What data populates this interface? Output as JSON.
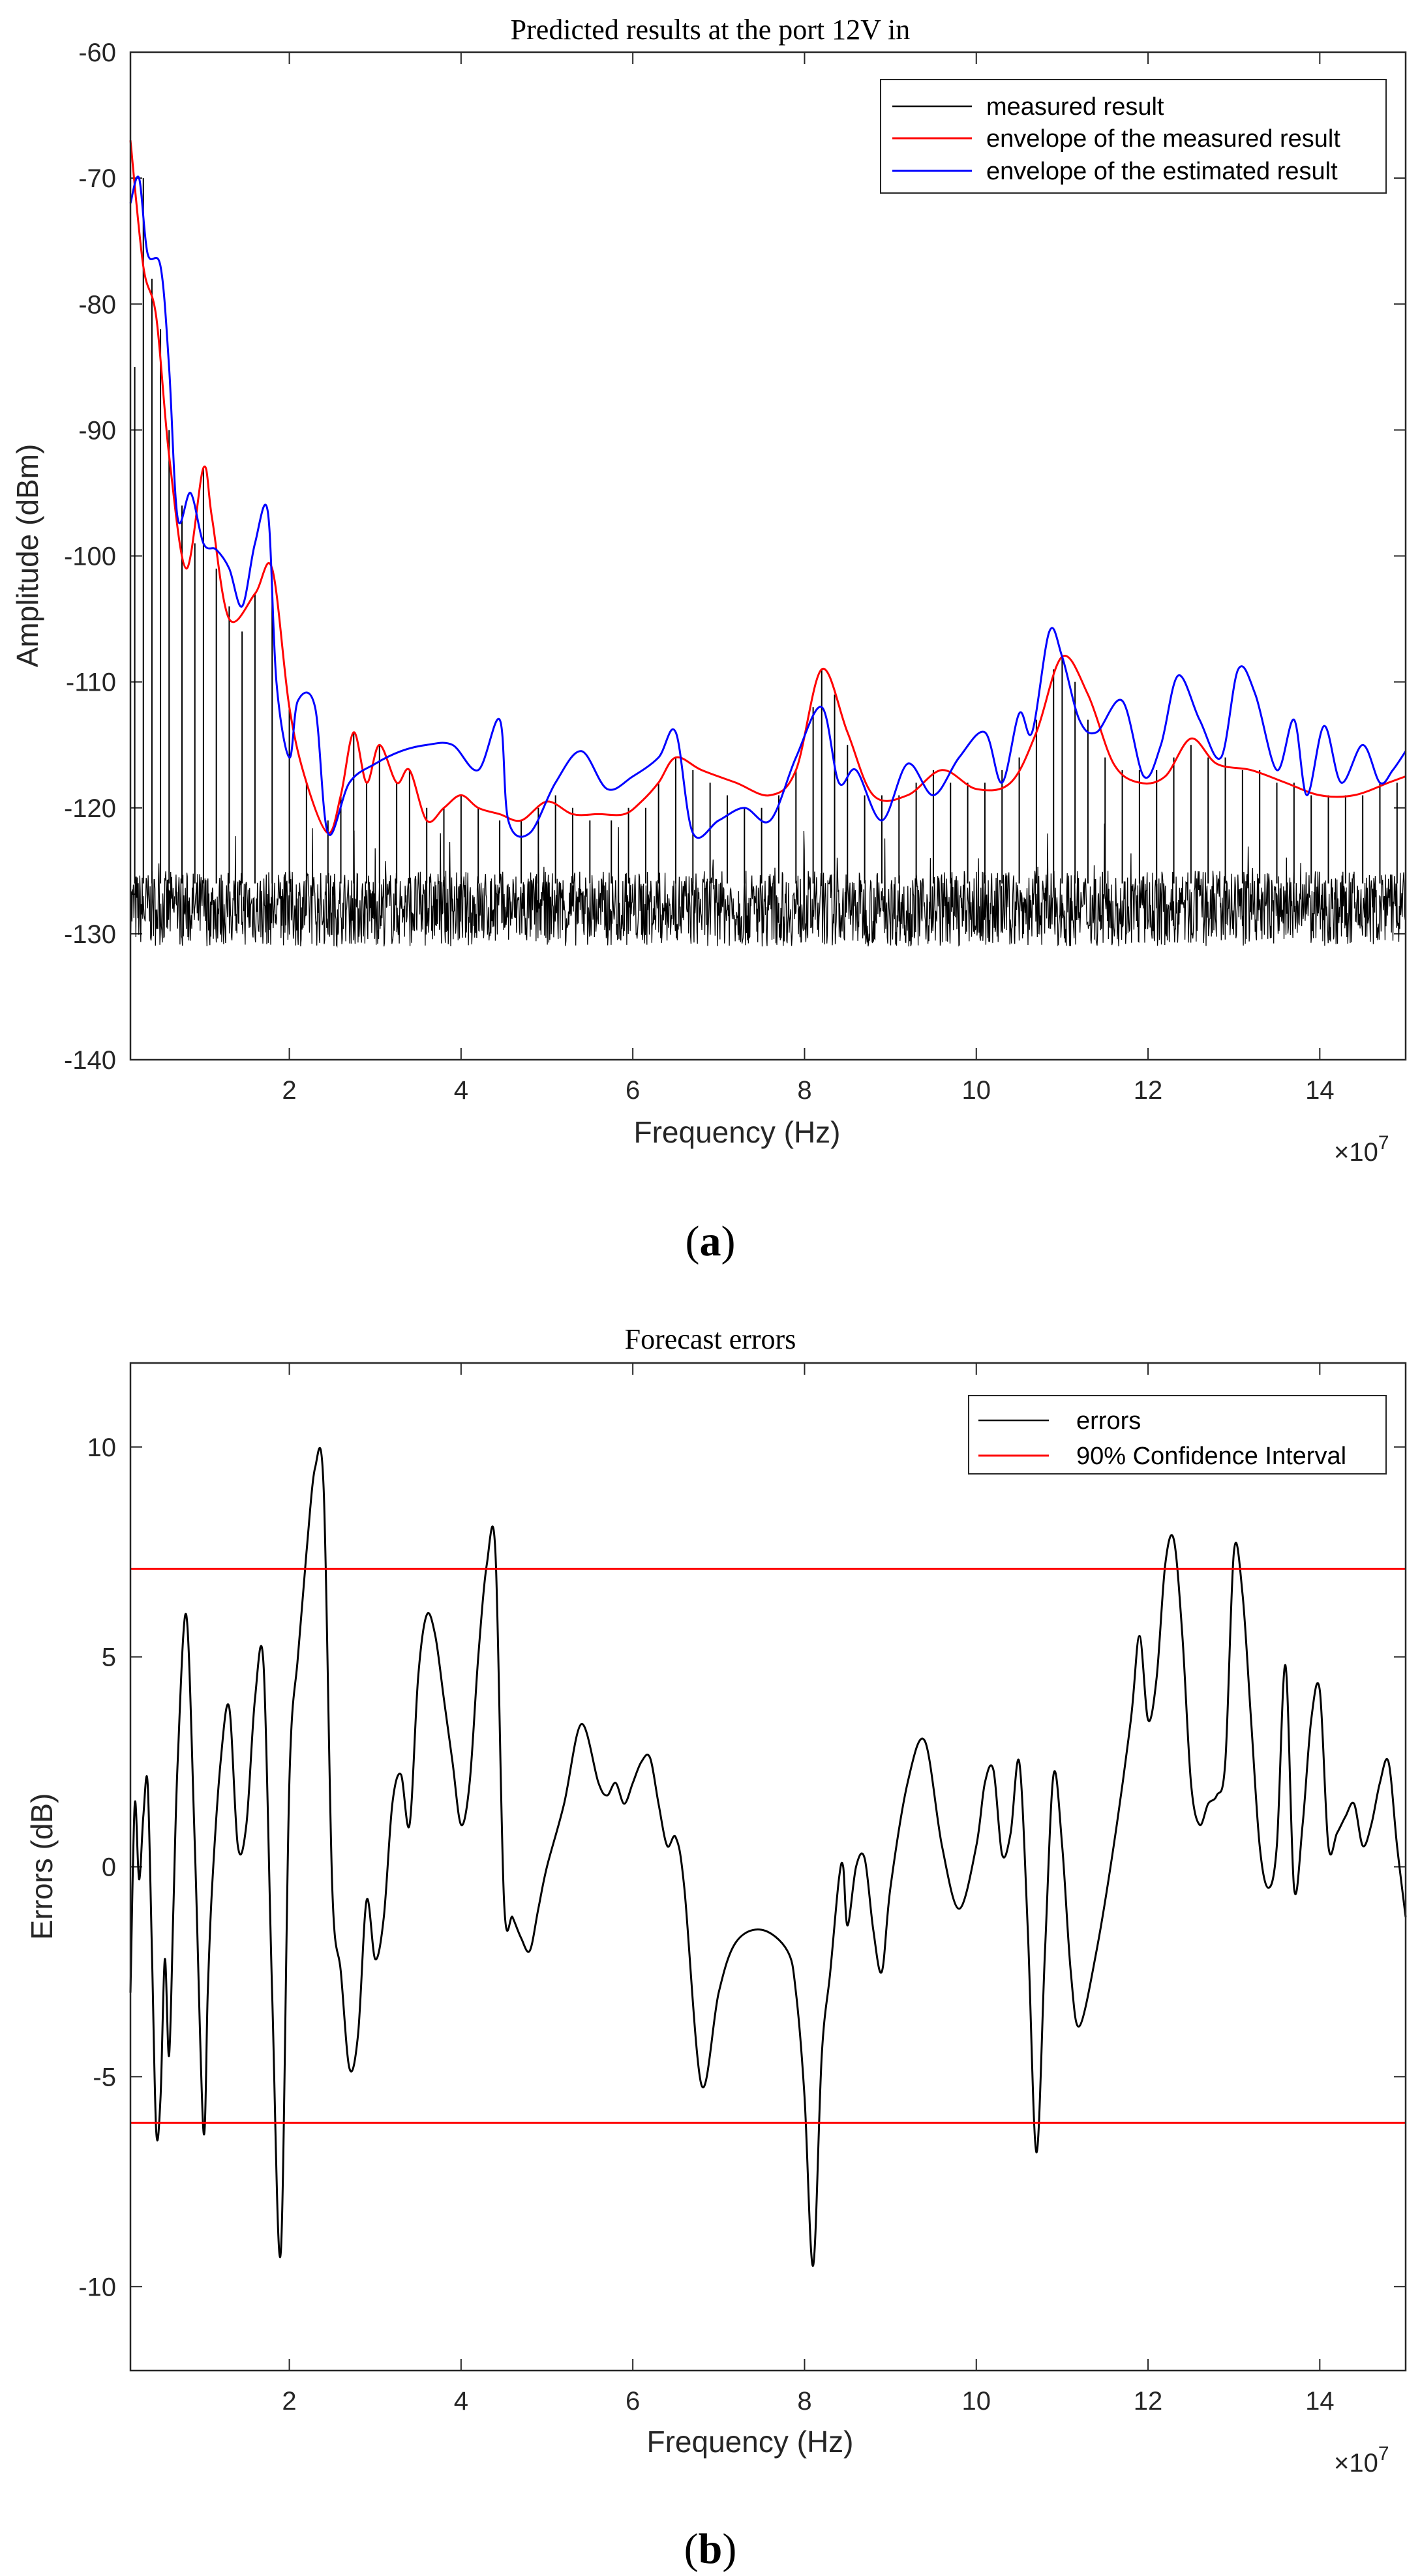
{
  "chart_data": [
    {
      "type": "line",
      "title": "Predicted results at the port 12V in",
      "xlabel": "Frequency (Hz)",
      "ylabel": "Amplitude (dBm)",
      "x_exponent_label": "×10",
      "x_exponent_power": "7",
      "xlim": [
        0.15,
        15
      ],
      "ylim": [
        -140,
        -60
      ],
      "xticks": [
        2,
        4,
        6,
        8,
        10,
        12,
        14
      ],
      "yticks": [
        -140,
        -130,
        -120,
        -110,
        -100,
        -90,
        -80,
        -70,
        -60
      ],
      "xtick_labels": [
        "2",
        "4",
        "6",
        "8",
        "10",
        "12",
        "14"
      ],
      "ytick_labels": [
        "-140",
        "-130",
        "-120",
        "-110",
        "-100",
        "-90",
        "-80",
        "-70",
        "-60"
      ],
      "legend": [
        "measured result",
        "envelope of the measured result",
        "envelope of the estimated result"
      ],
      "legend_position": "top-right",
      "caption_letter": "a",
      "series": [
        {
          "name": "measured result",
          "color": "#000000",
          "noise_floor": -128,
          "peaks": [
            [
              0.15,
              -68
            ],
            [
              0.2,
              -85
            ],
            [
              0.3,
              -70
            ],
            [
              0.4,
              -78
            ],
            [
              0.5,
              -82
            ],
            [
              0.6,
              -90
            ],
            [
              0.75,
              -96
            ],
            [
              0.9,
              -99
            ],
            [
              1.0,
              -93
            ],
            [
              1.15,
              -101
            ],
            [
              1.3,
              -104
            ],
            [
              1.45,
              -106
            ],
            [
              1.6,
              -103
            ],
            [
              1.8,
              -102
            ],
            [
              2.0,
              -112
            ],
            [
              2.2,
              -118
            ],
            [
              2.45,
              -121
            ],
            [
              2.6,
              -119
            ],
            [
              2.75,
              -114
            ],
            [
              2.9,
              -118
            ],
            [
              3.05,
              -115
            ],
            [
              3.25,
              -118
            ],
            [
              3.4,
              -117
            ],
            [
              3.6,
              -120
            ],
            [
              3.8,
              -120
            ],
            [
              4.0,
              -119
            ],
            [
              4.2,
              -120
            ],
            [
              4.45,
              -121
            ],
            [
              4.7,
              -121
            ],
            [
              4.9,
              -120
            ],
            [
              5.1,
              -119
            ],
            [
              5.3,
              -120
            ],
            [
              5.5,
              -121
            ],
            [
              5.75,
              -121
            ],
            [
              5.95,
              -120
            ],
            [
              6.15,
              -120
            ],
            [
              6.3,
              -118
            ],
            [
              6.5,
              -116
            ],
            [
              6.7,
              -117
            ],
            [
              6.9,
              -118
            ],
            [
              7.1,
              -119
            ],
            [
              7.3,
              -120
            ],
            [
              7.5,
              -120
            ],
            [
              7.7,
              -119
            ],
            [
              7.9,
              -117
            ],
            [
              8.1,
              -112
            ],
            [
              8.2,
              -109
            ],
            [
              8.35,
              -111
            ],
            [
              8.5,
              -115
            ],
            [
              8.7,
              -119
            ],
            [
              8.9,
              -119
            ],
            [
              9.1,
              -119
            ],
            [
              9.3,
              -118
            ],
            [
              9.5,
              -117
            ],
            [
              9.7,
              -118
            ],
            [
              9.9,
              -118
            ],
            [
              10.1,
              -118
            ],
            [
              10.3,
              -117
            ],
            [
              10.5,
              -116
            ],
            [
              10.7,
              -113
            ],
            [
              10.9,
              -109
            ],
            [
              11.0,
              -108
            ],
            [
              11.15,
              -110
            ],
            [
              11.3,
              -113
            ],
            [
              11.5,
              -116
            ],
            [
              11.7,
              -117
            ],
            [
              11.9,
              -117
            ],
            [
              12.1,
              -117
            ],
            [
              12.3,
              -116
            ],
            [
              12.5,
              -115
            ],
            [
              12.7,
              -116
            ],
            [
              12.9,
              -116
            ],
            [
              13.1,
              -117
            ],
            [
              13.3,
              -117
            ],
            [
              13.5,
              -118
            ],
            [
              13.7,
              -118
            ],
            [
              13.9,
              -119
            ],
            [
              14.1,
              -119
            ],
            [
              14.3,
              -119
            ],
            [
              14.5,
              -119
            ],
            [
              14.7,
              -118
            ],
            [
              14.9,
              -118
            ]
          ]
        },
        {
          "name": "envelope of the measured result",
          "color": "#ff0000",
          "x": [
            0.15,
            0.3,
            0.45,
            0.6,
            0.8,
            1.0,
            1.1,
            1.3,
            1.6,
            1.8,
            2.0,
            2.2,
            2.45,
            2.6,
            2.75,
            2.9,
            3.05,
            3.25,
            3.4,
            3.6,
            3.8,
            4.0,
            4.2,
            4.45,
            4.7,
            5.0,
            5.3,
            5.6,
            5.9,
            6.1,
            6.3,
            6.5,
            6.8,
            7.2,
            7.6,
            7.9,
            8.2,
            8.5,
            8.8,
            9.2,
            9.6,
            10.0,
            10.4,
            10.7,
            11.0,
            11.3,
            11.6,
            11.9,
            12.2,
            12.5,
            12.8,
            13.2,
            13.6,
            14.0,
            14.4,
            14.8,
            15.0
          ],
          "y": [
            -67,
            -77,
            -81,
            -92,
            -101,
            -93,
            -97,
            -105,
            -103,
            -101,
            -112,
            -118,
            -122,
            -119,
            -114,
            -118,
            -115,
            -118,
            -117,
            -121,
            -120,
            -119,
            -120,
            -120.5,
            -121,
            -119.5,
            -120.5,
            -120.5,
            -120.5,
            -119.5,
            -118,
            -116,
            -117,
            -118,
            -119,
            -117,
            -109,
            -114,
            -119,
            -119,
            -117,
            -118.5,
            -118,
            -114,
            -108,
            -111,
            -116.5,
            -118,
            -117.5,
            -114.5,
            -116.5,
            -117,
            -118,
            -119,
            -119,
            -118,
            -117.5
          ]
        },
        {
          "name": "envelope of the estimated result",
          "color": "#0000ff",
          "x": [
            0.15,
            0.25,
            0.35,
            0.5,
            0.6,
            0.7,
            0.85,
            1.0,
            1.15,
            1.3,
            1.45,
            1.6,
            1.75,
            1.85,
            2.0,
            2.1,
            2.3,
            2.45,
            2.7,
            3.0,
            3.3,
            3.6,
            3.9,
            4.2,
            4.45,
            4.55,
            4.8,
            5.1,
            5.4,
            5.7,
            6.0,
            6.3,
            6.5,
            6.7,
            7.0,
            7.3,
            7.6,
            7.9,
            8.2,
            8.4,
            8.6,
            8.9,
            9.2,
            9.5,
            9.8,
            10.1,
            10.3,
            10.5,
            10.65,
            10.85,
            11.0,
            11.2,
            11.4,
            11.7,
            11.95,
            12.15,
            12.35,
            12.6,
            12.85,
            13.05,
            13.25,
            13.5,
            13.7,
            13.85,
            14.05,
            14.25,
            14.5,
            14.7,
            14.85,
            15.0
          ],
          "y": [
            -72,
            -70,
            -76,
            -77,
            -85,
            -97,
            -95,
            -99,
            -99.5,
            -101,
            -104,
            -99,
            -96.5,
            -110,
            -116,
            -111.5,
            -112,
            -122,
            -118,
            -116.5,
            -115.5,
            -115,
            -115,
            -117,
            -113,
            -121,
            -122,
            -118,
            -115.5,
            -118.5,
            -117.5,
            -116,
            -114,
            -122,
            -121,
            -120,
            -121,
            -116,
            -112,
            -118,
            -117,
            -121,
            -116.5,
            -119,
            -116,
            -114,
            -118,
            -112.5,
            -114,
            -106,
            -108,
            -113,
            -114,
            -111.5,
            -117.5,
            -115,
            -109.5,
            -113,
            -116,
            -109,
            -111,
            -117,
            -113,
            -119,
            -113.5,
            -118,
            -115,
            -118,
            -117,
            -115.5
          ]
        }
      ]
    },
    {
      "type": "line",
      "title": "Forecast errors",
      "xlabel": "Frequency (Hz)",
      "ylabel": "Errors (dB)",
      "x_exponent_label": "×10",
      "x_exponent_power": "7",
      "xlim": [
        0.15,
        15
      ],
      "ylim": [
        -12,
        12
      ],
      "xticks": [
        2,
        4,
        6,
        8,
        10,
        12,
        14
      ],
      "yticks": [
        -10,
        -5,
        0,
        5,
        10
      ],
      "xtick_labels": [
        "2",
        "4",
        "6",
        "8",
        "10",
        "12",
        "14"
      ],
      "ytick_labels": [
        "-10",
        "-5",
        "0",
        "5",
        "10"
      ],
      "legend": [
        "errors",
        "90% Confidence Interval"
      ],
      "legend_position": "top-right",
      "caption_letter": "b",
      "series": [
        {
          "name": "errors",
          "color": "#000000",
          "x": [
            0.15,
            0.2,
            0.25,
            0.3,
            0.35,
            0.4,
            0.45,
            0.5,
            0.55,
            0.6,
            0.65,
            0.7,
            0.8,
            0.9,
            1.0,
            1.05,
            1.1,
            1.2,
            1.3,
            1.4,
            1.5,
            1.6,
            1.7,
            1.8,
            1.9,
            2.0,
            2.1,
            2.2,
            2.3,
            2.4,
            2.5,
            2.6,
            2.7,
            2.8,
            2.9,
            3.0,
            3.1,
            3.2,
            3.3,
            3.4,
            3.5,
            3.6,
            3.7,
            3.8,
            3.9,
            4.0,
            4.1,
            4.2,
            4.3,
            4.4,
            4.5,
            4.6,
            4.7,
            4.8,
            4.9,
            5.0,
            5.2,
            5.4,
            5.6,
            5.7,
            5.8,
            5.9,
            6.0,
            6.1,
            6.2,
            6.3,
            6.4,
            6.5,
            6.6,
            6.8,
            7.0,
            7.2,
            7.5,
            7.8,
            7.9,
            8.0,
            8.1,
            8.2,
            8.3,
            8.4,
            8.45,
            8.5,
            8.6,
            8.7,
            8.8,
            8.9,
            9.0,
            9.2,
            9.4,
            9.6,
            9.8,
            10.0,
            10.1,
            10.2,
            10.3,
            10.4,
            10.5,
            10.6,
            10.7,
            10.8,
            10.9,
            11.0,
            11.1,
            11.2,
            11.4,
            11.6,
            11.8,
            11.9,
            12.0,
            12.1,
            12.2,
            12.3,
            12.4,
            12.5,
            12.6,
            12.7,
            12.8,
            12.9,
            13.0,
            13.1,
            13.2,
            13.3,
            13.4,
            13.5,
            13.6,
            13.7,
            13.8,
            13.9,
            14.0,
            14.1,
            14.2,
            14.3,
            14.4,
            14.5,
            14.6,
            14.7,
            14.8,
            14.9,
            15.0
          ],
          "y": [
            -3,
            1.5,
            -0.3,
            1.2,
            2.0,
            -2.0,
            -6.3,
            -5.5,
            -2.2,
            -4.5,
            -1.0,
            2.5,
            6.0,
            0.5,
            -6.3,
            -3.0,
            -0.5,
            2.5,
            3.8,
            0.5,
            1.0,
            4.0,
            4.8,
            -3.0,
            -9.2,
            2.0,
            5.0,
            7.5,
            9.5,
            9.0,
            -0.5,
            -2.5,
            -4.8,
            -4.0,
            -0.8,
            -2.2,
            -1.2,
            1.5,
            2.2,
            1.0,
            4.5,
            6.0,
            5.5,
            4.0,
            2.5,
            1.0,
            2.0,
            5.0,
            7.2,
            7.5,
            -0.8,
            -1.2,
            -1.7,
            -2.0,
            -1.0,
            0.0,
            1.5,
            3.4,
            2.0,
            1.7,
            2.0,
            1.5,
            2.0,
            2.5,
            2.6,
            1.5,
            0.5,
            0.7,
            -0.5,
            -5.2,
            -3.0,
            -1.8,
            -1.5,
            -2.0,
            -3.0,
            -5.5,
            -9.5,
            -4.5,
            -2.5,
            -0.3,
            0.0,
            -1.4,
            0.0,
            0.2,
            -1.5,
            -2.5,
            -0.5,
            2.0,
            3.0,
            0.5,
            -1.0,
            0.5,
            2.0,
            2.3,
            0.3,
            0.8,
            2.5,
            -1.5,
            -6.8,
            -2.0,
            2.2,
            0.5,
            -2.5,
            -3.8,
            -2.0,
            0.5,
            3.5,
            5.5,
            3.5,
            4.5,
            7.2,
            7.8,
            5.5,
            2.0,
            1.0,
            1.5,
            1.7,
            2.5,
            7.5,
            6.5,
            3.5,
            0.5,
            -0.5,
            0.5,
            4.8,
            -0.5,
            1.0,
            3.5,
            4.2,
            0.5,
            0.8,
            1.2,
            1.5,
            0.5,
            1.0,
            2.0,
            2.5,
            0.5,
            -1.2
          ]
        },
        {
          "name": "90% Confidence Interval",
          "color": "#ff0000",
          "upper": 7.1,
          "lower": -6.1
        }
      ]
    }
  ]
}
